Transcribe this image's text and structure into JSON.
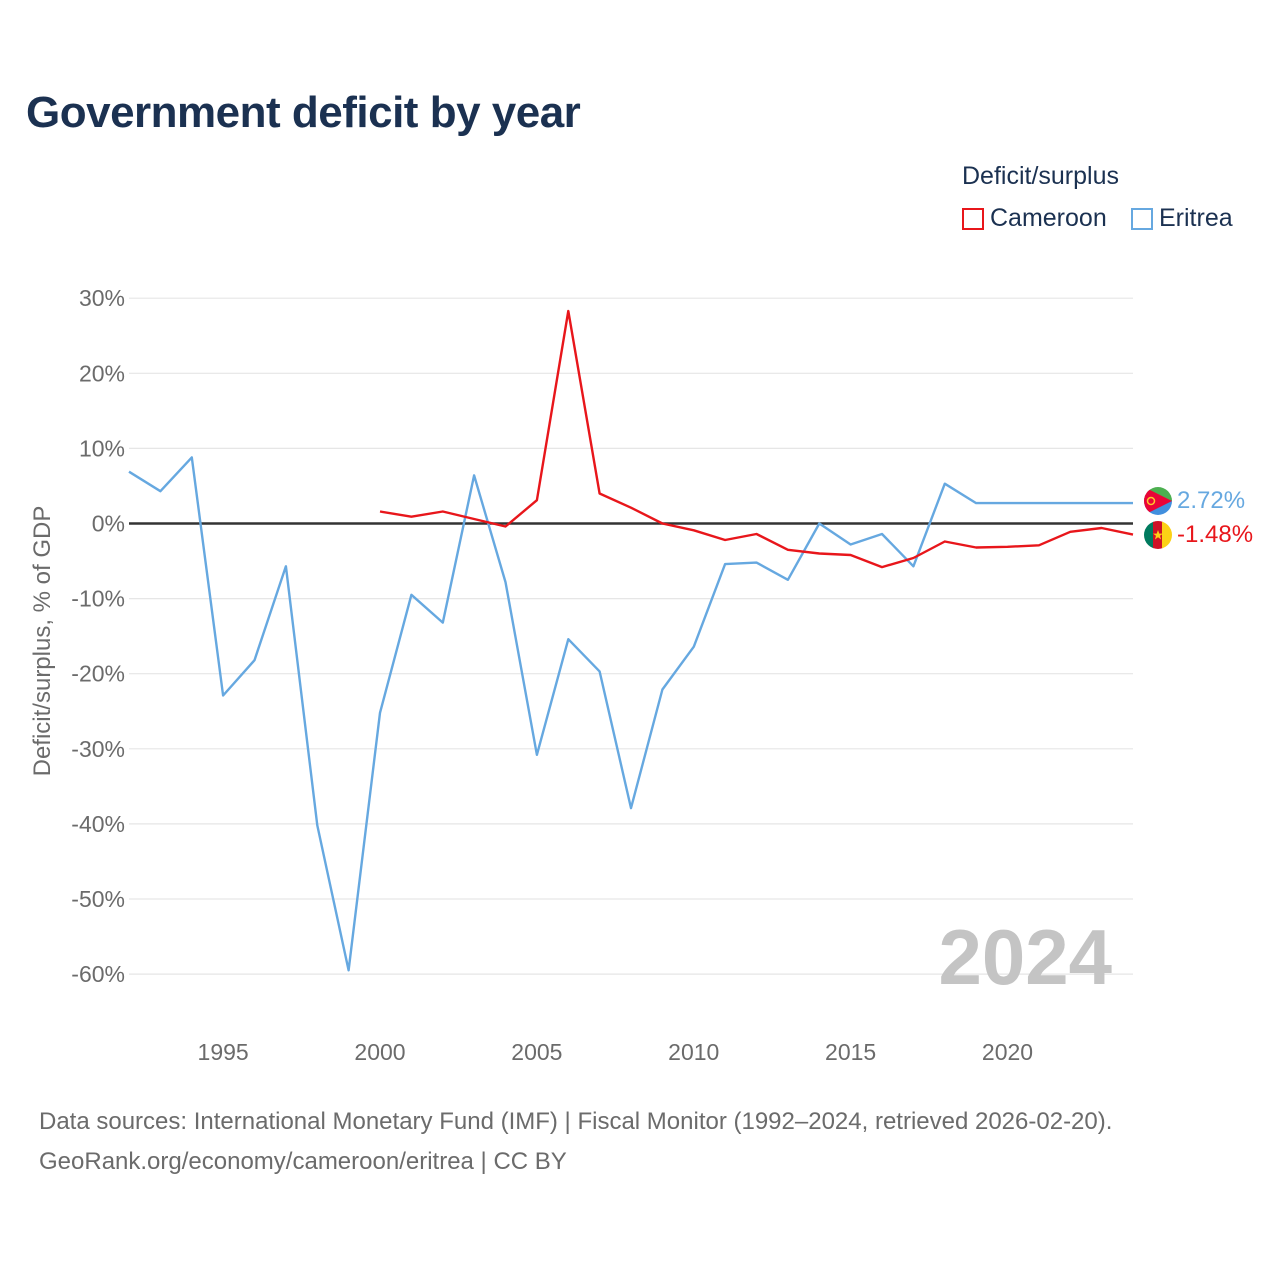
{
  "title": "Government deficit by year",
  "legend": {
    "title": "Deficit/surplus",
    "items": [
      {
        "name": "Cameroon",
        "color": "#e8161b"
      },
      {
        "name": "Eritrea",
        "color": "#66a8e0"
      }
    ]
  },
  "year_watermark": "2024",
  "end_labels": {
    "eritrea": "2.72%",
    "cameroon": "-1.48%"
  },
  "footer": {
    "line1": "Data sources: International Monetary Fund (IMF) | Fiscal Monitor (1992–2024, retrieved 2026-02-20).",
    "line2": "GeoRank.org/economy/cameroon/eritrea | CC BY"
  },
  "chart_data": {
    "type": "line",
    "title": "Government deficit by year",
    "xlabel": "",
    "ylabel": "Deficit/surplus, % of GDP",
    "xlim": [
      1992,
      2024
    ],
    "ylim": [
      -65,
      33
    ],
    "yticks": [
      30,
      20,
      10,
      0,
      -10,
      -20,
      -30,
      -40,
      -50,
      -60
    ],
    "ytick_labels": [
      "30%",
      "20%",
      "10%",
      "0%",
      "-10%",
      "-20%",
      "-30%",
      "-40%",
      "-50%",
      "-60%"
    ],
    "xticks": [
      1995,
      2000,
      2005,
      2010,
      2015,
      2020
    ],
    "xtick_labels": [
      "1995",
      "2000",
      "2005",
      "2010",
      "2015",
      "2020"
    ],
    "grid": true,
    "legend_position": "top-right",
    "series": [
      {
        "name": "Cameroon",
        "color": "#e8161b",
        "x": [
          2000,
          2001,
          2002,
          2003,
          2004,
          2005,
          2006,
          2007,
          2008,
          2009,
          2010,
          2011,
          2012,
          2013,
          2014,
          2015,
          2016,
          2017,
          2018,
          2019,
          2020,
          2021,
          2022,
          2023,
          2024
        ],
        "values": [
          1.6,
          0.9,
          1.6,
          0.6,
          -0.4,
          3.1,
          28.3,
          4.0,
          2.1,
          0.0,
          -0.9,
          -2.2,
          -1.4,
          -3.5,
          -4.0,
          -4.2,
          -5.8,
          -4.6,
          -2.4,
          -3.2,
          -3.1,
          -2.9,
          -1.1,
          -0.6,
          -1.48
        ]
      },
      {
        "name": "Eritrea",
        "color": "#66a8e0",
        "x": [
          1992,
          1993,
          1994,
          1995,
          1996,
          1997,
          1998,
          1999,
          2000,
          2001,
          2002,
          2003,
          2004,
          2005,
          2006,
          2007,
          2008,
          2009,
          2010,
          2011,
          2012,
          2013,
          2014,
          2015,
          2016,
          2017,
          2018,
          2019,
          2020,
          2021,
          2022,
          2023,
          2024
        ],
        "values": [
          6.9,
          4.3,
          8.8,
          -22.9,
          -18.2,
          -5.7,
          -40.2,
          -59.5,
          -25.2,
          -9.5,
          -13.2,
          6.4,
          -7.8,
          -30.8,
          -15.4,
          -19.7,
          -37.9,
          -22.1,
          -16.4,
          -5.4,
          -5.2,
          -7.5,
          0.0,
          -2.8,
          -1.4,
          -5.7,
          5.3,
          2.72,
          2.72,
          2.72,
          2.72,
          2.72,
          2.72
        ]
      }
    ]
  }
}
